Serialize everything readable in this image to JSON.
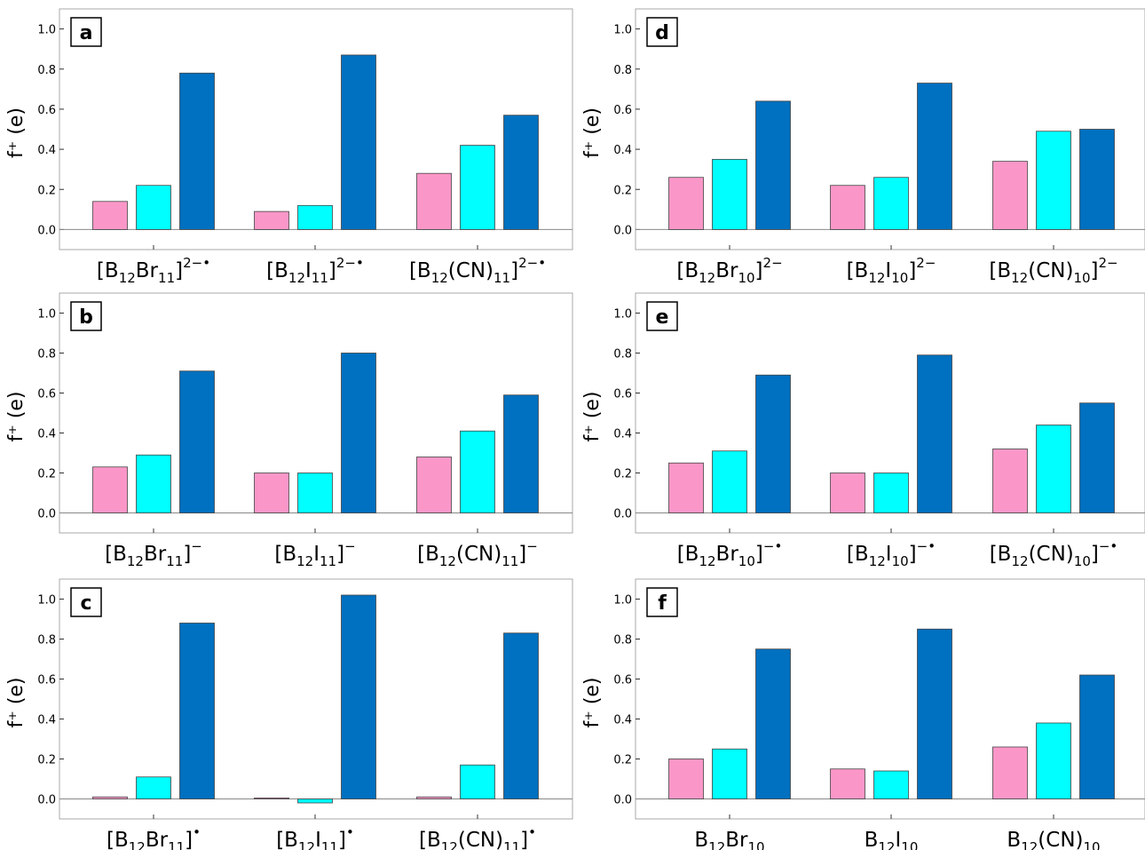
{
  "colors": {
    "pink": "#fb97c8",
    "cyan": "#00ffff",
    "blue": "#0070c0",
    "frame": "#a8a8a8",
    "tick": "#333333",
    "text": "#000000"
  },
  "chart_data": [
    {
      "panel": "a",
      "type": "bar",
      "ylabel": "f⁺ (e)",
      "ylim": [
        -0.1,
        1.1
      ],
      "yticks": [
        "0.0",
        "0.2",
        "0.4",
        "0.6",
        "0.8",
        "1.0"
      ],
      "categories": [
        {
          "base": "[B",
          "sub1": "12",
          "mid": "Br",
          "sub2": "11",
          "tail": "]",
          "sup": "2−•"
        },
        {
          "base": "[B",
          "sub1": "12",
          "mid": "I",
          "sub2": "11",
          "tail": "]",
          "sup": "2−•"
        },
        {
          "base": "[B",
          "sub1": "12",
          "mid": "(CN)",
          "sub2": "11",
          "tail": "]",
          "sup": "2−•"
        }
      ],
      "series": [
        {
          "color": "pink",
          "values": [
            0.14,
            0.09,
            0.28
          ]
        },
        {
          "color": "cyan",
          "values": [
            0.22,
            0.12,
            0.42
          ]
        },
        {
          "color": "blue",
          "values": [
            0.78,
            0.87,
            0.57
          ]
        }
      ]
    },
    {
      "panel": "b",
      "type": "bar",
      "ylabel": "f⁺ (e)",
      "ylim": [
        -0.1,
        1.1
      ],
      "yticks": [
        "0.0",
        "0.2",
        "0.4",
        "0.6",
        "0.8",
        "1.0"
      ],
      "categories": [
        {
          "base": "[B",
          "sub1": "12",
          "mid": "Br",
          "sub2": "11",
          "tail": "]",
          "sup": "−"
        },
        {
          "base": "[B",
          "sub1": "12",
          "mid": "I",
          "sub2": "11",
          "tail": "]",
          "sup": "−"
        },
        {
          "base": "[B",
          "sub1": "12",
          "mid": "(CN)",
          "sub2": "11",
          "tail": "]",
          "sup": "−"
        }
      ],
      "series": [
        {
          "color": "pink",
          "values": [
            0.23,
            0.2,
            0.28
          ]
        },
        {
          "color": "cyan",
          "values": [
            0.29,
            0.2,
            0.41
          ]
        },
        {
          "color": "blue",
          "values": [
            0.71,
            0.8,
            0.59
          ]
        }
      ]
    },
    {
      "panel": "c",
      "type": "bar",
      "ylabel": "f⁺ (e)",
      "ylim": [
        -0.1,
        1.1
      ],
      "yticks": [
        "0.0",
        "0.2",
        "0.4",
        "0.6",
        "0.8",
        "1.0"
      ],
      "categories": [
        {
          "base": "[B",
          "sub1": "12",
          "mid": "Br",
          "sub2": "11",
          "tail": "]",
          "sup": "•"
        },
        {
          "base": "[B",
          "sub1": "12",
          "mid": "I",
          "sub2": "11",
          "tail": "]",
          "sup": "•"
        },
        {
          "base": "[B",
          "sub1": "12",
          "mid": "(CN)",
          "sub2": "11",
          "tail": "]",
          "sup": "•"
        }
      ],
      "series": [
        {
          "color": "pink",
          "values": [
            0.01,
            0.005,
            0.01
          ]
        },
        {
          "color": "cyan",
          "values": [
            0.11,
            -0.02,
            0.17
          ]
        },
        {
          "color": "blue",
          "values": [
            0.88,
            1.02,
            0.83
          ]
        }
      ]
    },
    {
      "panel": "d",
      "type": "bar",
      "ylabel": "f⁺ (e)",
      "ylim": [
        -0.1,
        1.1
      ],
      "yticks": [
        "0.0",
        "0.2",
        "0.4",
        "0.6",
        "0.8",
        "1.0"
      ],
      "categories": [
        {
          "base": "[B",
          "sub1": "12",
          "mid": "Br",
          "sub2": "10",
          "tail": "]",
          "sup": "2−"
        },
        {
          "base": "[B",
          "sub1": "12",
          "mid": "I",
          "sub2": "10",
          "tail": "]",
          "sup": "2−"
        },
        {
          "base": "[B",
          "sub1": "12",
          "mid": "(CN)",
          "sub2": "10",
          "tail": "]",
          "sup": "2−"
        }
      ],
      "series": [
        {
          "color": "pink",
          "values": [
            0.26,
            0.22,
            0.34
          ]
        },
        {
          "color": "cyan",
          "values": [
            0.35,
            0.26,
            0.49
          ]
        },
        {
          "color": "blue",
          "values": [
            0.64,
            0.73,
            0.5
          ]
        }
      ]
    },
    {
      "panel": "e",
      "type": "bar",
      "ylabel": "f⁺ (e)",
      "ylim": [
        -0.1,
        1.1
      ],
      "yticks": [
        "0.0",
        "0.2",
        "0.4",
        "0.6",
        "0.8",
        "1.0"
      ],
      "categories": [
        {
          "base": "[B",
          "sub1": "12",
          "mid": "Br",
          "sub2": "10",
          "tail": "]",
          "sup": "−•"
        },
        {
          "base": "[B",
          "sub1": "12",
          "mid": "I",
          "sub2": "10",
          "tail": "]",
          "sup": "−•"
        },
        {
          "base": "[B",
          "sub1": "12",
          "mid": "(CN)",
          "sub2": "10",
          "tail": "]",
          "sup": "−•"
        }
      ],
      "series": [
        {
          "color": "pink",
          "values": [
            0.25,
            0.2,
            0.32
          ]
        },
        {
          "color": "cyan",
          "values": [
            0.31,
            0.2,
            0.44
          ]
        },
        {
          "color": "blue",
          "values": [
            0.69,
            0.79,
            0.55
          ]
        }
      ]
    },
    {
      "panel": "f",
      "type": "bar",
      "ylabel": "f⁺ (e)",
      "ylim": [
        -0.1,
        1.1
      ],
      "yticks": [
        "0.0",
        "0.2",
        "0.4",
        "0.6",
        "0.8",
        "1.0"
      ],
      "categories": [
        {
          "base": "B",
          "sub1": "12",
          "mid": "Br",
          "sub2": "10",
          "tail": "",
          "sup": ""
        },
        {
          "base": "B",
          "sub1": "12",
          "mid": "I",
          "sub2": "10",
          "tail": "",
          "sup": ""
        },
        {
          "base": "B",
          "sub1": "12",
          "mid": "(CN)",
          "sub2": "10",
          "tail": "",
          "sup": ""
        }
      ],
      "series": [
        {
          "color": "pink",
          "values": [
            0.2,
            0.15,
            0.26
          ]
        },
        {
          "color": "cyan",
          "values": [
            0.25,
            0.14,
            0.38
          ]
        },
        {
          "color": "blue",
          "values": [
            0.75,
            0.85,
            0.62
          ]
        }
      ]
    }
  ]
}
